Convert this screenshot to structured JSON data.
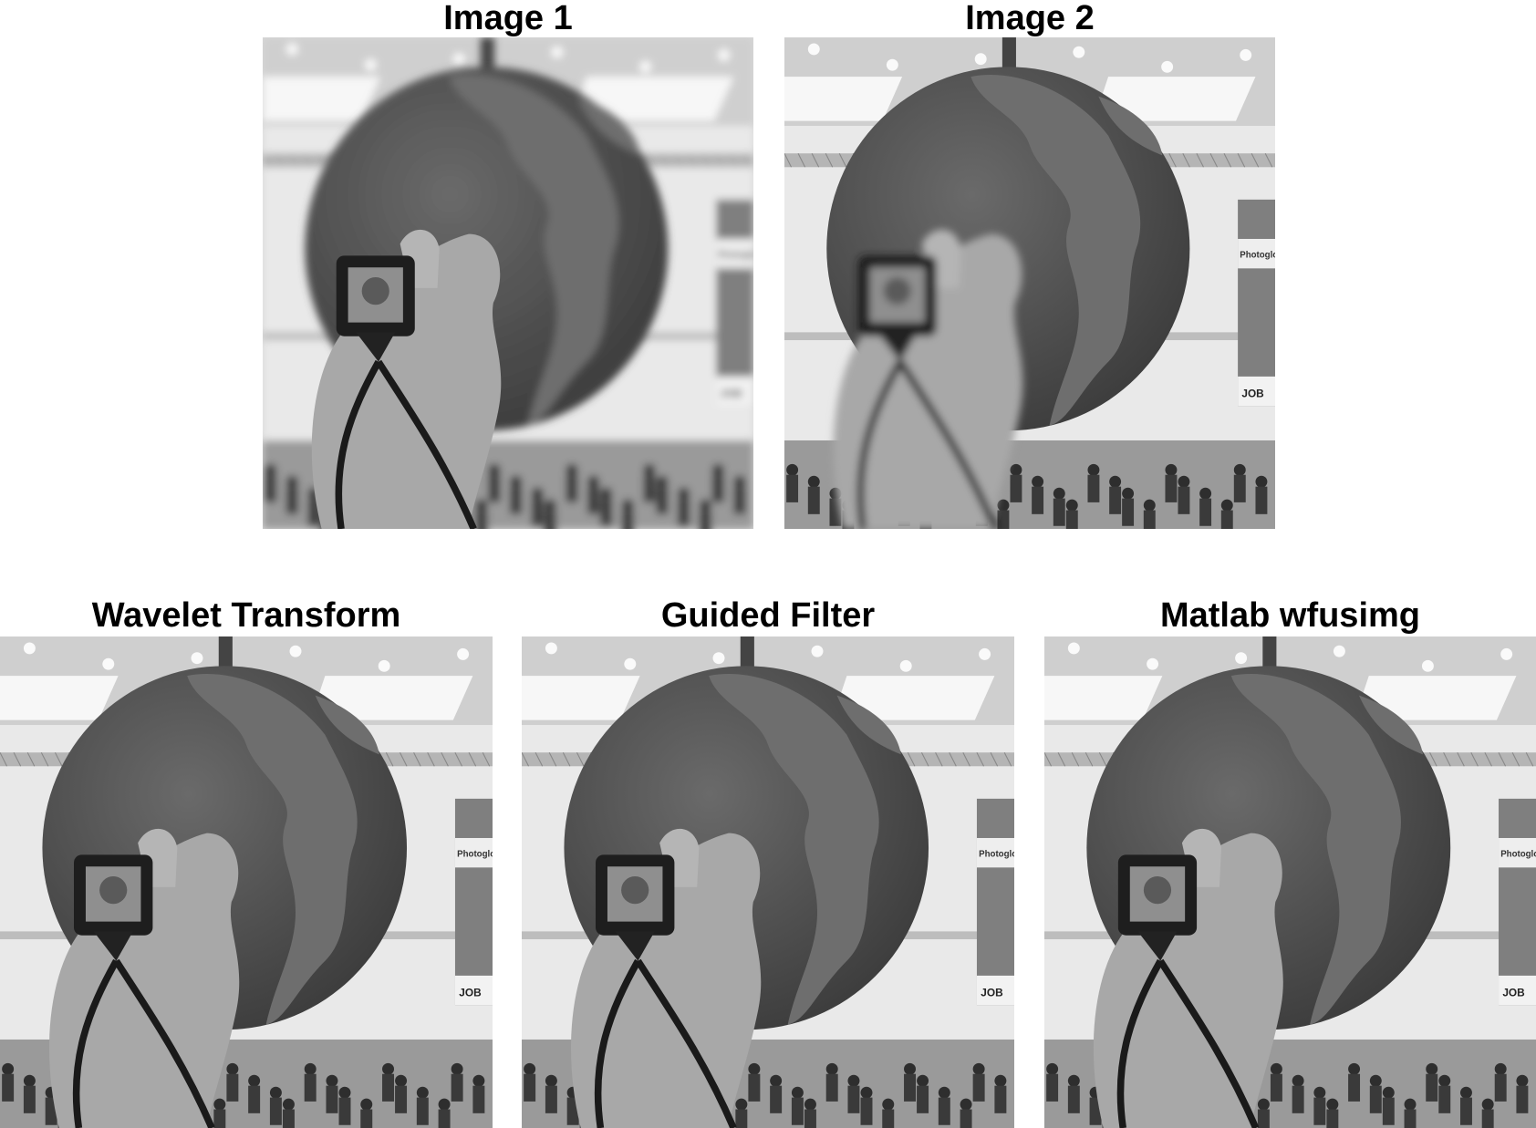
{
  "panels": [
    {
      "caption": "Image 1",
      "blur_globe": 4,
      "blur_hand": 0,
      "icon": "blurred-globe-photo"
    },
    {
      "caption": "Image 2",
      "blur_globe": 0,
      "blur_hand": 4,
      "icon": "blurred-hand-photo"
    },
    {
      "caption": "Wavelet Transform",
      "blur_globe": 0,
      "blur_hand": 0,
      "icon": "fused-photo"
    },
    {
      "caption": "Guided Filter",
      "blur_globe": 0,
      "blur_hand": 0,
      "icon": "fused-photo"
    },
    {
      "caption": "Matlab wfusimg",
      "blur_globe": 0,
      "blur_hand": 0,
      "icon": "fused-photo"
    }
  ],
  "sign": {
    "line1": "Photoglo",
    "line2": "JOB"
  },
  "colors": {
    "ocean": "#555555",
    "land": "#6e6e6e",
    "skin": "#a8a8a8",
    "ceiling": "#e9e9e9",
    "strap": "#1a1a1a"
  }
}
